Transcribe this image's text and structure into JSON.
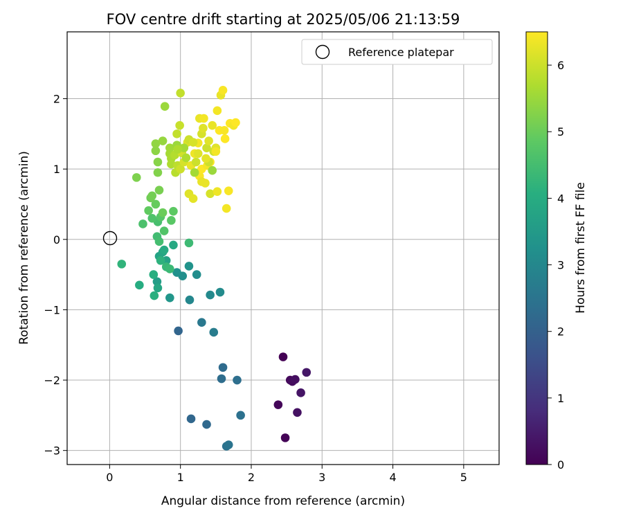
{
  "chart_data": {
    "type": "scatter",
    "title": "FOV centre drift starting at 2025/05/06 21:13:59",
    "xlabel": "Angular distance from reference (arcmin)",
    "ylabel": "Rotation from reference (arcmin)",
    "xlim": [
      -0.6,
      5.5
    ],
    "ylim": [
      -3.2,
      2.95
    ],
    "xticks": [
      "0",
      "1",
      "2",
      "3",
      "4",
      "5"
    ],
    "yticks": [
      "2",
      "1",
      "0",
      "−1",
      "−2",
      "−3"
    ],
    "grid": true,
    "legend": {
      "placement": "top-right",
      "label": "Reference platepar"
    },
    "reference_point": [
      0,
      0
    ],
    "colorbar": {
      "label": "Hours from first FF file",
      "range": [
        0,
        6.5
      ],
      "ticks": [
        "0",
        "1",
        "2",
        "3",
        "4",
        "5",
        "6"
      ],
      "colormap": "viridis"
    },
    "series": [
      {
        "points": [
          [
            2.45,
            -1.67,
            0.0
          ],
          [
            2.48,
            -2.82,
            0.05
          ],
          [
            2.38,
            -2.35,
            0.1
          ],
          [
            2.55,
            -2.0,
            0.15
          ],
          [
            2.58,
            -2.02,
            0.2
          ],
          [
            2.62,
            -1.99,
            0.25
          ],
          [
            2.65,
            -2.46,
            0.3
          ],
          [
            2.7,
            -2.18,
            0.35
          ],
          [
            2.78,
            -1.89,
            0.4
          ],
          [
            0.97,
            -1.3,
            2.1
          ],
          [
            1.15,
            -2.55,
            2.15
          ],
          [
            1.37,
            -2.63,
            2.2
          ],
          [
            1.6,
            -1.82,
            2.25
          ],
          [
            1.58,
            -1.98,
            2.3
          ],
          [
            1.8,
            -2.0,
            2.35
          ],
          [
            1.85,
            -2.5,
            2.4
          ],
          [
            1.65,
            -2.94,
            2.45
          ],
          [
            1.68,
            -2.92,
            2.5
          ],
          [
            1.3,
            -1.18,
            2.6
          ],
          [
            1.47,
            -1.32,
            2.7
          ],
          [
            1.13,
            -0.86,
            3.0
          ],
          [
            1.42,
            -0.79,
            3.05
          ],
          [
            1.56,
            -0.75,
            3.1
          ],
          [
            1.23,
            -0.5,
            3.15
          ],
          [
            1.03,
            -0.52,
            3.2
          ],
          [
            0.95,
            -0.47,
            3.25
          ],
          [
            1.12,
            -0.38,
            3.3
          ],
          [
            0.85,
            -0.83,
            3.4
          ],
          [
            0.67,
            -0.6,
            3.6
          ],
          [
            0.8,
            -0.3,
            3.7
          ],
          [
            0.7,
            -0.24,
            3.75
          ],
          [
            0.75,
            -0.18,
            3.8
          ],
          [
            0.68,
            -0.69,
            3.85
          ],
          [
            0.9,
            -0.08,
            3.9
          ],
          [
            0.77,
            -0.15,
            3.95
          ],
          [
            0.42,
            -0.65,
            4.0
          ],
          [
            0.62,
            -0.5,
            4.05
          ],
          [
            0.63,
            -0.8,
            4.1
          ],
          [
            0.72,
            -0.3,
            4.15
          ],
          [
            0.17,
            -0.35,
            4.2
          ],
          [
            0.8,
            -0.39,
            4.3
          ],
          [
            0.85,
            -0.42,
            4.35
          ],
          [
            1.12,
            -0.05,
            4.4
          ],
          [
            0.67,
            0.04,
            4.45
          ],
          [
            0.7,
            -0.03,
            4.5
          ],
          [
            0.68,
            0.25,
            4.55
          ],
          [
            0.47,
            0.22,
            4.6
          ],
          [
            0.6,
            0.3,
            4.65
          ],
          [
            0.77,
            0.12,
            4.7
          ],
          [
            0.72,
            0.32,
            4.75
          ],
          [
            0.87,
            0.27,
            4.8
          ],
          [
            0.9,
            0.4,
            4.85
          ],
          [
            0.55,
            0.41,
            4.9
          ],
          [
            0.65,
            0.5,
            4.95
          ],
          [
            0.75,
            0.38,
            5.0
          ],
          [
            0.58,
            0.59,
            5.05
          ],
          [
            0.6,
            0.62,
            5.1
          ],
          [
            0.7,
            0.7,
            5.15
          ],
          [
            0.38,
            0.88,
            5.2
          ],
          [
            0.68,
            0.95,
            5.25
          ],
          [
            0.68,
            1.1,
            5.3
          ],
          [
            0.65,
            1.26,
            5.35
          ],
          [
            0.65,
            1.36,
            5.4
          ],
          [
            0.75,
            1.4,
            5.45
          ],
          [
            0.78,
            1.89,
            5.5
          ],
          [
            0.85,
            1.3,
            5.55
          ],
          [
            0.85,
            1.22,
            5.6
          ],
          [
            0.87,
            1.15,
            5.65
          ],
          [
            0.87,
            1.07,
            5.7
          ],
          [
            0.92,
            1.2,
            5.75
          ],
          [
            0.93,
            0.95,
            5.8
          ],
          [
            0.96,
            1.05,
            5.85
          ],
          [
            0.95,
            1.5,
            5.9
          ],
          [
            0.99,
            1.62,
            5.95
          ],
          [
            1.0,
            1.0,
            6.0
          ],
          [
            1.02,
            1.23,
            6.05
          ],
          [
            1.05,
            1.1,
            6.1
          ],
          [
            1.1,
            1.38,
            6.15
          ],
          [
            1.12,
            0.65,
            6.2
          ],
          [
            1.18,
            0.58,
            6.25
          ],
          [
            1.15,
            1.05,
            6.3
          ],
          [
            1.2,
            1.22,
            6.35
          ],
          [
            1.25,
            1.37,
            6.4
          ],
          [
            1.27,
            0.9,
            6.45
          ],
          [
            1.3,
            1.0,
            6.5
          ],
          [
            0.95,
            1.34,
            5.5
          ],
          [
            1.0,
            2.08,
            5.9
          ],
          [
            1.05,
            1.3,
            5.6
          ],
          [
            1.08,
            1.16,
            5.7
          ],
          [
            1.12,
            1.42,
            6.0
          ],
          [
            1.18,
            1.38,
            6.1
          ],
          [
            1.22,
            1.1,
            6.0
          ],
          [
            1.25,
            1.22,
            6.2
          ],
          [
            1.27,
            1.72,
            6.3
          ],
          [
            1.3,
            1.5,
            6.1
          ],
          [
            1.32,
            1.58,
            6.2
          ],
          [
            1.33,
            1.72,
            6.4
          ],
          [
            1.35,
            0.8,
            6.3
          ],
          [
            1.37,
            1.3,
            6.0
          ],
          [
            1.38,
            1.05,
            6.4
          ],
          [
            1.4,
            1.4,
            6.2
          ],
          [
            1.42,
            1.1,
            6.5
          ],
          [
            1.42,
            0.65,
            6.1
          ],
          [
            1.45,
            1.62,
            6.3
          ],
          [
            1.47,
            1.25,
            6.0
          ],
          [
            1.5,
            1.3,
            6.2
          ],
          [
            1.52,
            1.83,
            6.4
          ],
          [
            1.55,
            1.55,
            6.5
          ],
          [
            1.57,
            2.05,
            6.3
          ],
          [
            1.6,
            2.12,
            6.45
          ],
          [
            1.52,
            0.68,
            6.35
          ],
          [
            1.63,
            1.43,
            6.5
          ],
          [
            1.65,
            0.44,
            6.4
          ],
          [
            1.68,
            0.69,
            6.45
          ],
          [
            1.7,
            1.65,
            6.5
          ],
          [
            1.75,
            1.62,
            6.4
          ],
          [
            1.78,
            1.66,
            6.5
          ],
          [
            1.62,
            1.55,
            6.45
          ],
          [
            1.45,
            0.98,
            5.5
          ],
          [
            1.2,
            0.95,
            5.6
          ],
          [
            0.96,
            1.28,
            5.7
          ],
          [
            1.4,
            1.1,
            6.0
          ],
          [
            1.3,
            0.82,
            6.3
          ],
          [
            1.5,
            1.25,
            6.4
          ],
          [
            1.36,
            1.15,
            6.25
          ]
        ]
      }
    ]
  }
}
